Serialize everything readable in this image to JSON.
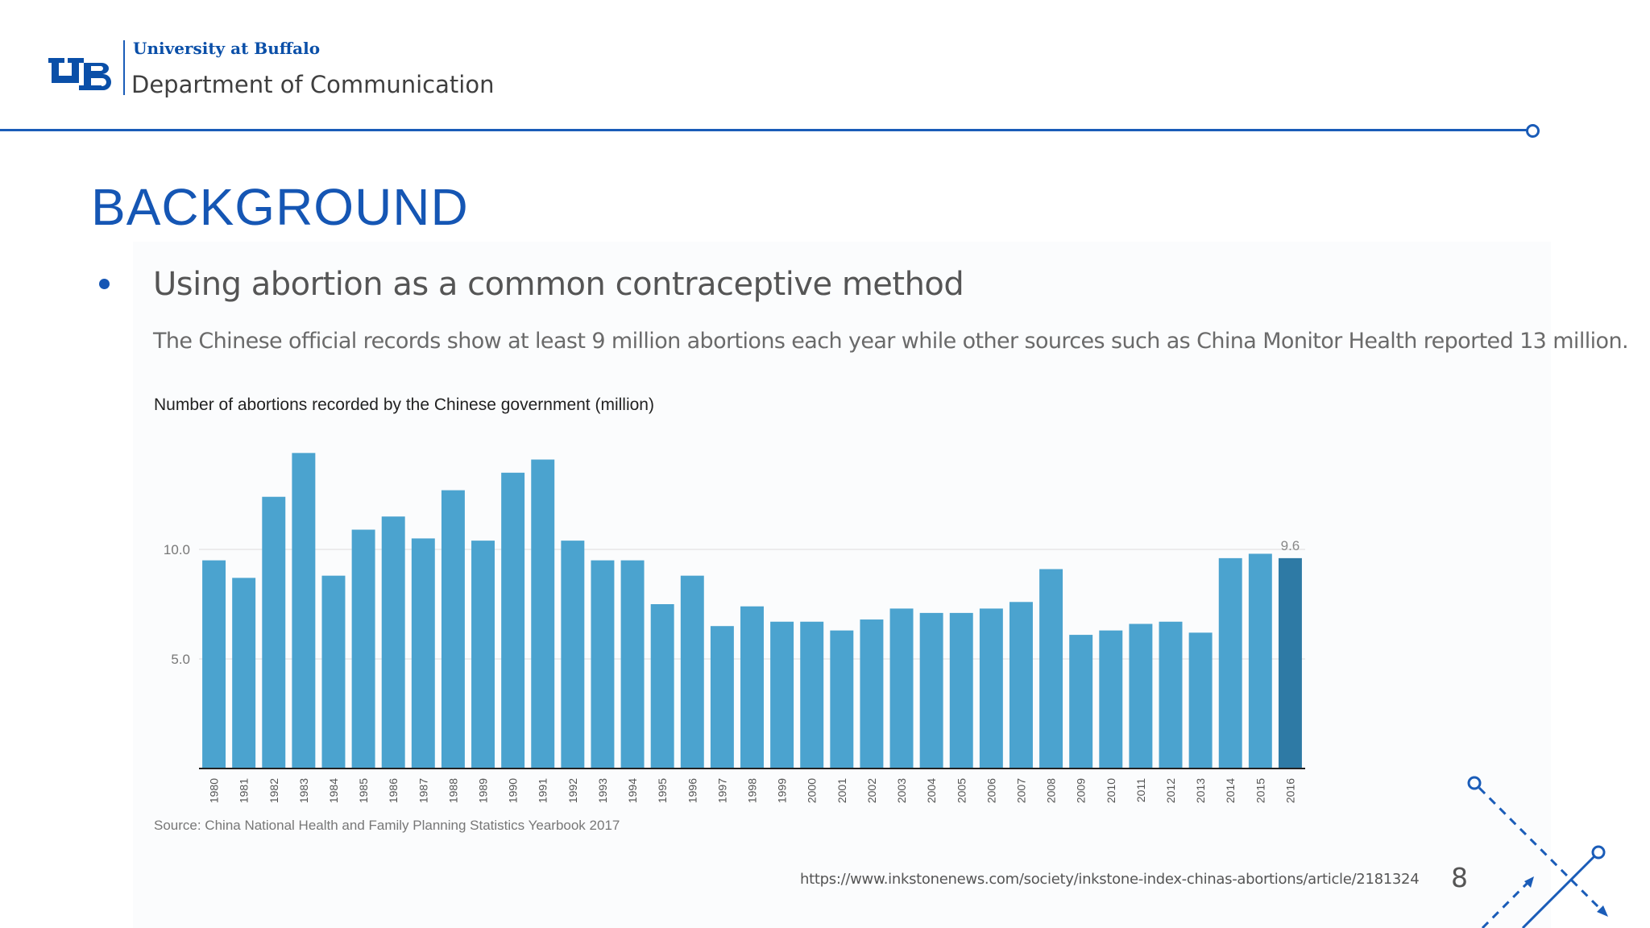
{
  "header": {
    "university": "University at Buffalo",
    "department": "Department of Communication"
  },
  "slide": {
    "title": "BACKGROUND",
    "bullet": "Using abortion as a common contraceptive method",
    "body": "The Chinese official records show at least 9 million abortions each year while other sources such as China Monitor Health reported 13 million.",
    "url": "https://www.inkstonenews.com/society/inkstone-index-chinas-abortions/article/2181324",
    "page_number": "8"
  },
  "chart_data": {
    "type": "bar",
    "title": "Number of abortions recorded by the Chinese government (million)",
    "source": "Source: China National Health and Family Planning Statistics Yearbook 2017",
    "categories": [
      "1980",
      "1981",
      "1982",
      "1983",
      "1984",
      "1985",
      "1986",
      "1987",
      "1988",
      "1989",
      "1990",
      "1991",
      "1992",
      "1993",
      "1994",
      "1995",
      "1996",
      "1997",
      "1998",
      "1999",
      "2000",
      "2001",
      "2002",
      "2003",
      "2004",
      "2005",
      "2006",
      "2007",
      "2008",
      "2009",
      "2010",
      "2011",
      "2012",
      "2013",
      "2014",
      "2015",
      "2016"
    ],
    "values": [
      9.5,
      8.7,
      12.4,
      14.4,
      8.8,
      10.9,
      11.5,
      10.5,
      12.7,
      10.4,
      13.5,
      14.1,
      10.4,
      9.5,
      9.5,
      7.5,
      8.8,
      6.5,
      7.4,
      6.7,
      6.7,
      6.3,
      6.8,
      7.3,
      7.1,
      7.1,
      7.3,
      7.6,
      9.1,
      6.1,
      6.3,
      6.6,
      6.7,
      6.2,
      9.6,
      9.8,
      9.6
    ],
    "yticks": [
      "5.0",
      "10.0"
    ],
    "ylim": [
      0,
      15
    ],
    "data_labels": [
      {
        "category": "2016",
        "label": "9.6"
      }
    ],
    "highlight_category": "2016",
    "colors": {
      "bar": "#4ba3cf",
      "highlight": "#2e7aa5",
      "grid": "#dddddd",
      "axis": "#222222"
    },
    "grid": true,
    "legend": "none"
  },
  "colors": {
    "brand": "#1556b4"
  }
}
